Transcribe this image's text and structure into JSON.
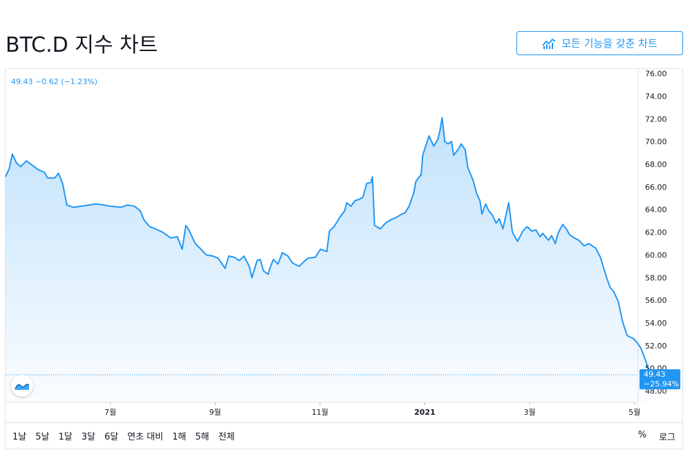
{
  "title": "BTC.D 지수 차트",
  "full_chart_button": "모든 기능을 갖춘 차트",
  "legend": "49.43 −0.62 (−1.23%)",
  "last_price": "49.43",
  "last_change": "−25.94%",
  "toolbar": {
    "timeframes": [
      "1날",
      "5날",
      "1달",
      "3달",
      "6달",
      "연초 대비",
      "1해",
      "5해",
      "전체"
    ],
    "percent": "%",
    "log": "로그"
  },
  "colors": {
    "line": "#2196f3",
    "accent": "#2196f3",
    "badge": "#2196f3"
  },
  "chart_data": {
    "type": "area",
    "title": "",
    "xlabel": "",
    "ylabel": "",
    "ylim": [
      47,
      76.4
    ],
    "y_ticks": [
      "48.00",
      "50.00",
      "52.00",
      "54.00",
      "56.00",
      "58.00",
      "60.00",
      "62.00",
      "64.00",
      "66.00",
      "68.00",
      "70.00",
      "72.00",
      "74.00",
      "76.00"
    ],
    "x_ticks": [
      "7월",
      "9월",
      "11월",
      "2021",
      "3월",
      "5월"
    ],
    "x_tick_positions": [
      1.33,
      3.33,
      5.33,
      7.33,
      9.33,
      11.33
    ],
    "x_range": [
      -0.67,
      11.4
    ],
    "grid": false,
    "series": [
      {
        "points": [
          [
            -0.67,
            66.9
          ],
          [
            -0.6,
            67.6
          ],
          [
            -0.54,
            68.9
          ],
          [
            -0.46,
            68.1
          ],
          [
            -0.38,
            67.8
          ],
          [
            -0.27,
            68.3
          ],
          [
            -0.16,
            67.9
          ],
          [
            -0.04,
            67.5
          ],
          [
            0.07,
            67.3
          ],
          [
            0.13,
            66.8
          ],
          [
            0.27,
            66.8
          ],
          [
            0.34,
            67.2
          ],
          [
            0.42,
            66.3
          ],
          [
            0.5,
            64.4
          ],
          [
            0.62,
            64.2
          ],
          [
            0.78,
            64.3
          ],
          [
            0.93,
            64.4
          ],
          [
            1.06,
            64.5
          ],
          [
            1.2,
            64.4
          ],
          [
            1.33,
            64.3
          ],
          [
            1.53,
            64.2
          ],
          [
            1.66,
            64.4
          ],
          [
            1.79,
            64.3
          ],
          [
            1.9,
            63.9
          ],
          [
            1.97,
            63.1
          ],
          [
            2.08,
            62.5
          ],
          [
            2.19,
            62.3
          ],
          [
            2.33,
            62.0
          ],
          [
            2.48,
            61.5
          ],
          [
            2.61,
            61.6
          ],
          [
            2.7,
            60.5
          ],
          [
            2.77,
            62.6
          ],
          [
            2.83,
            62.2
          ],
          [
            2.95,
            61.0
          ],
          [
            3.04,
            60.6
          ],
          [
            3.16,
            60.0
          ],
          [
            3.29,
            59.9
          ],
          [
            3.39,
            59.7
          ],
          [
            3.52,
            58.8
          ],
          [
            3.59,
            59.9
          ],
          [
            3.69,
            59.8
          ],
          [
            3.79,
            59.5
          ],
          [
            3.88,
            59.9
          ],
          [
            3.98,
            59.0
          ],
          [
            4.03,
            58.0
          ],
          [
            4.13,
            59.5
          ],
          [
            4.19,
            59.6
          ],
          [
            4.25,
            58.6
          ],
          [
            4.34,
            58.3
          ],
          [
            4.38,
            58.9
          ],
          [
            4.44,
            59.6
          ],
          [
            4.53,
            59.2
          ],
          [
            4.61,
            60.2
          ],
          [
            4.72,
            59.9
          ],
          [
            4.8,
            59.3
          ],
          [
            4.93,
            59.0
          ],
          [
            5.09,
            59.7
          ],
          [
            5.24,
            59.8
          ],
          [
            5.34,
            60.5
          ],
          [
            5.46,
            60.3
          ],
          [
            5.51,
            62.1
          ],
          [
            5.6,
            62.5
          ],
          [
            5.72,
            63.4
          ],
          [
            5.8,
            63.9
          ],
          [
            5.84,
            64.6
          ],
          [
            5.92,
            64.3
          ],
          [
            6.0,
            64.8
          ],
          [
            6.08,
            64.9
          ],
          [
            6.15,
            65.1
          ],
          [
            6.22,
            66.3
          ],
          [
            6.3,
            66.4
          ],
          [
            6.33,
            66.9
          ],
          [
            6.37,
            62.6
          ],
          [
            6.48,
            62.3
          ],
          [
            6.58,
            62.8
          ],
          [
            6.68,
            63.1
          ],
          [
            6.78,
            63.3
          ],
          [
            6.89,
            63.6
          ],
          [
            6.95,
            63.7
          ],
          [
            7.03,
            64.3
          ],
          [
            7.12,
            65.5
          ],
          [
            7.16,
            66.5
          ],
          [
            7.26,
            67.1
          ],
          [
            7.29,
            68.8
          ],
          [
            7.41,
            70.5
          ],
          [
            7.5,
            69.6
          ],
          [
            7.58,
            70.2
          ],
          [
            7.62,
            71.0
          ],
          [
            7.66,
            72.1
          ],
          [
            7.71,
            70.0
          ],
          [
            7.77,
            69.8
          ],
          [
            7.84,
            70.0
          ],
          [
            7.88,
            68.8
          ],
          [
            7.98,
            69.4
          ],
          [
            8.02,
            69.8
          ],
          [
            8.1,
            69.3
          ],
          [
            8.15,
            67.7
          ],
          [
            8.25,
            66.6
          ],
          [
            8.32,
            65.4
          ],
          [
            8.38,
            64.8
          ],
          [
            8.42,
            63.6
          ],
          [
            8.49,
            64.5
          ],
          [
            8.55,
            63.9
          ],
          [
            8.62,
            63.5
          ],
          [
            8.69,
            62.8
          ],
          [
            8.75,
            63.2
          ],
          [
            8.82,
            62.3
          ],
          [
            8.93,
            64.6
          ],
          [
            9.0,
            62.0
          ],
          [
            9.1,
            61.2
          ],
          [
            9.2,
            62.1
          ],
          [
            9.28,
            62.5
          ],
          [
            9.37,
            62.1
          ],
          [
            9.45,
            62.2
          ],
          [
            9.53,
            61.6
          ],
          [
            9.58,
            61.9
          ],
          [
            9.69,
            61.3
          ],
          [
            9.75,
            61.7
          ],
          [
            9.82,
            61.0
          ],
          [
            9.87,
            61.9
          ],
          [
            9.96,
            62.7
          ],
          [
            10.03,
            62.3
          ],
          [
            10.09,
            61.8
          ],
          [
            10.18,
            61.5
          ],
          [
            10.27,
            61.3
          ],
          [
            10.37,
            60.8
          ],
          [
            10.46,
            61.0
          ],
          [
            10.59,
            60.6
          ],
          [
            10.68,
            59.8
          ],
          [
            10.79,
            58.1
          ],
          [
            10.87,
            57.1
          ],
          [
            10.93,
            56.8
          ],
          [
            11.02,
            55.9
          ],
          [
            11.11,
            54.0
          ],
          [
            11.19,
            52.9
          ],
          [
            11.27,
            52.7
          ],
          [
            11.32,
            52.6
          ],
          [
            11.39,
            52.2
          ],
          [
            11.45,
            51.8
          ],
          [
            11.51,
            51.1
          ],
          [
            11.57,
            50.3
          ],
          [
            11.62,
            49.43
          ]
        ]
      }
    ]
  }
}
